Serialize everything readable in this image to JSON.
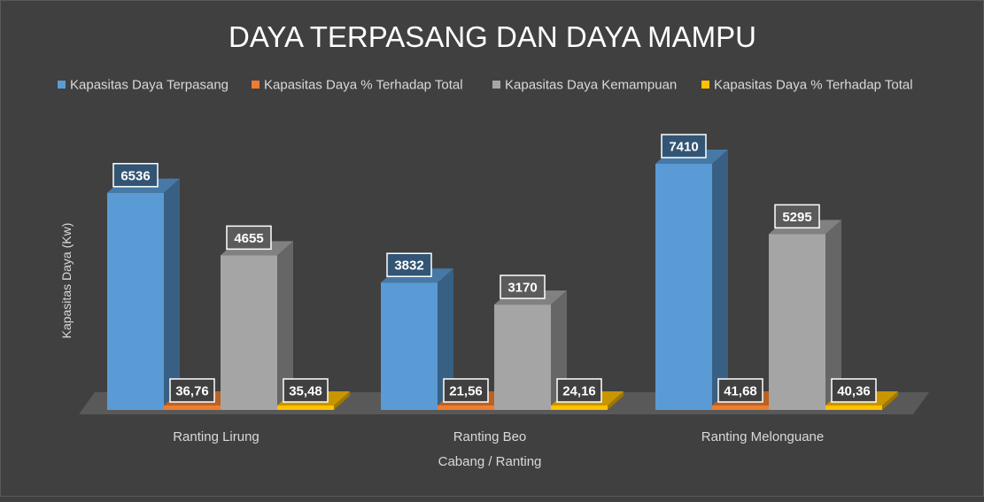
{
  "chart_data": {
    "type": "bar",
    "title": "DAYA TERPASANG DAN DAYA MAMPU",
    "xlabel": "Cabang / Ranting",
    "ylabel": "Kapasitas Daya (Kw)",
    "categories": [
      "Ranting Lirung",
      "Ranting Beo",
      "Ranting Melonguane"
    ],
    "series": [
      {
        "name": "Kapasitas Daya Terpasang",
        "values": [
          6536,
          3832,
          7410
        ],
        "labels": [
          "6536",
          "3832",
          "7410"
        ],
        "color": "#5b9bd5"
      },
      {
        "name": "Kapasitas Daya % Terhadap Total",
        "values": [
          36.76,
          21.56,
          41.68
        ],
        "labels": [
          "36,76",
          "21,56",
          "41,68"
        ],
        "color": "#ed7d31"
      },
      {
        "name": "Kapasitas Daya Kemampuan",
        "values": [
          4655,
          3170,
          5295
        ],
        "labels": [
          "4655",
          "3170",
          "5295"
        ],
        "color": "#a5a5a5"
      },
      {
        "name": "Kapasitas Daya % Terhadap Total",
        "values": [
          35.48,
          24.16,
          40.36
        ],
        "labels": [
          "35,48",
          "24,16",
          "40,36"
        ],
        "color": "#ffc000"
      }
    ],
    "ylim": [
      0,
      8000
    ],
    "grid": false,
    "legend_position": "top",
    "style": "3d-column",
    "background": "#404040"
  }
}
